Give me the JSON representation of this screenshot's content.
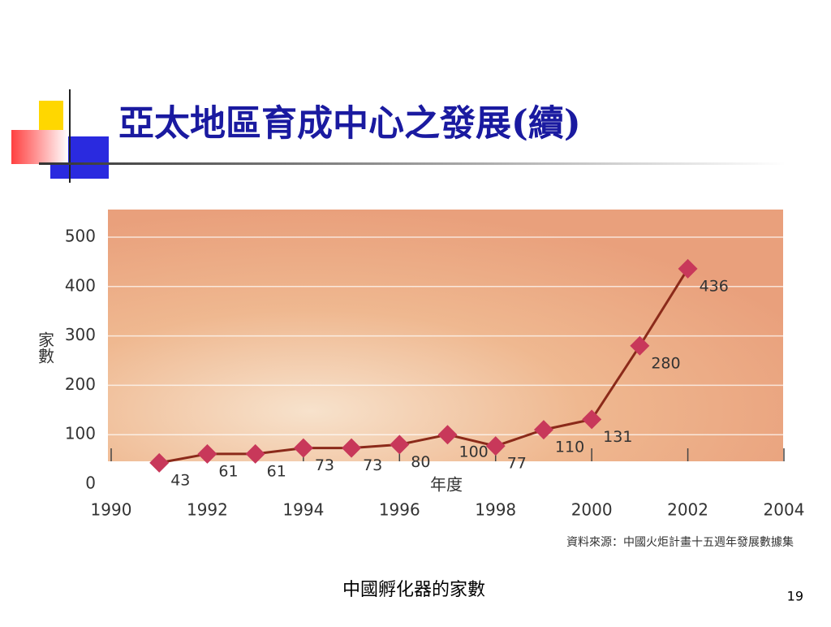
{
  "slide_title": "亞太地區育成中心之發展(續)",
  "chart_data": {
    "type": "line",
    "x": [
      1991,
      1992,
      1993,
      1994,
      1995,
      1996,
      1997,
      1998,
      1999,
      2000,
      2001,
      2002
    ],
    "values": [
      43,
      61,
      61,
      73,
      73,
      80,
      100,
      77,
      110,
      131,
      280,
      436
    ],
    "color": "#c8385a",
    "line_color": "#8b2a1a",
    "xlabel": "年度",
    "ylabel": "家數",
    "xlim": [
      1990,
      2004
    ],
    "xticks": [
      1990,
      1992,
      1994,
      1996,
      1998,
      2000,
      2002,
      2004
    ],
    "ylim": [
      0,
      500
    ],
    "yticks": [
      0,
      100,
      200,
      300,
      400,
      500
    ],
    "grid": true,
    "source": "資料來源：中國火炬計畫十五週年發展數據集"
  },
  "caption": "中國孵化器的家數",
  "slide_number": "19"
}
